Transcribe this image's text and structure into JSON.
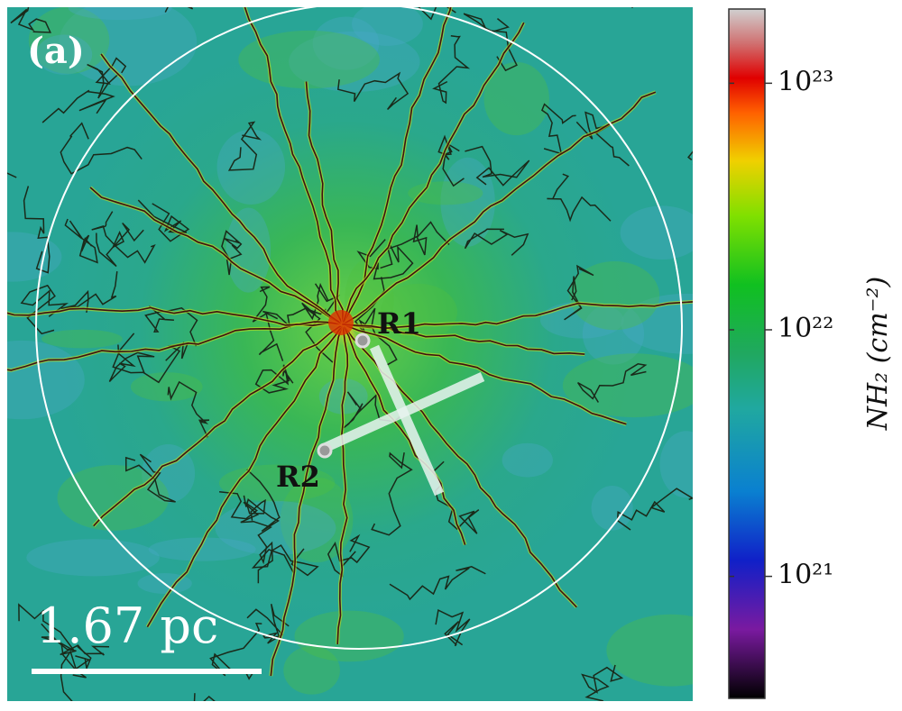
{
  "chart_data": {
    "type": "image",
    "panel_label": "(a)",
    "annotations": [
      "R1",
      "R2"
    ],
    "scale_bar": "1.67 pc",
    "colorbar": {
      "label": "NH₂ (cm⁻²)",
      "log_scale": true,
      "clim": [
        3.2e+20,
        2e+23
      ],
      "ticks": [
        {
          "value": 1e+21,
          "label": "10²¹"
        },
        {
          "value": 1e+22,
          "label": "10²²"
        },
        {
          "value": 1e+23,
          "label": "10²³"
        }
      ]
    }
  }
}
